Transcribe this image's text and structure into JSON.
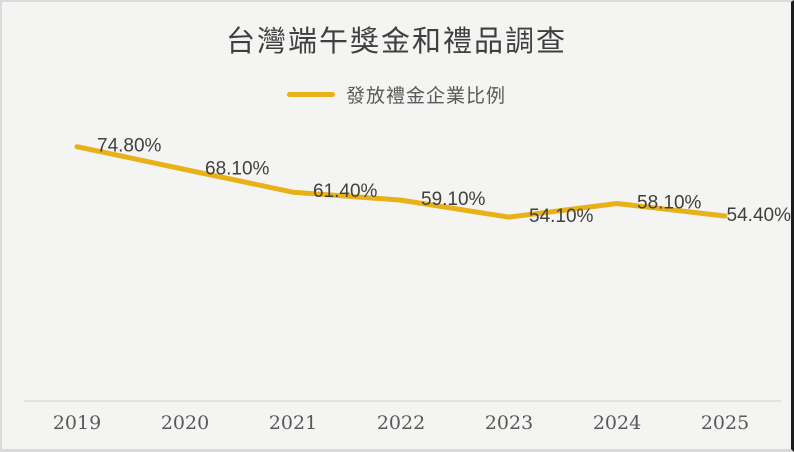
{
  "chart_data": {
    "type": "line",
    "title": "台灣端午獎金和禮品調查",
    "categories": [
      "2019",
      "2020",
      "2021",
      "2022",
      "2023",
      "2024",
      "2025"
    ],
    "series": [
      {
        "name": "發放禮金企業比例",
        "values": [
          74.8,
          68.1,
          61.4,
          59.1,
          54.1,
          58.1,
          54.4
        ],
        "labels": [
          "74.80%",
          "68.10%",
          "61.40%",
          "59.10%",
          "54.10%",
          "58.10%",
          "54.40%"
        ]
      }
    ],
    "xlabel": "",
    "ylabel": "",
    "ylim": [
      0,
      85
    ],
    "grid": false,
    "legend_position": "top",
    "colors": {
      "line": "#E8B117",
      "data_label": "#404040",
      "tick_label": "#595959",
      "axis_line": "#DCDCDC",
      "title": "#3F3F3F",
      "background": "#F4F4F2"
    }
  }
}
